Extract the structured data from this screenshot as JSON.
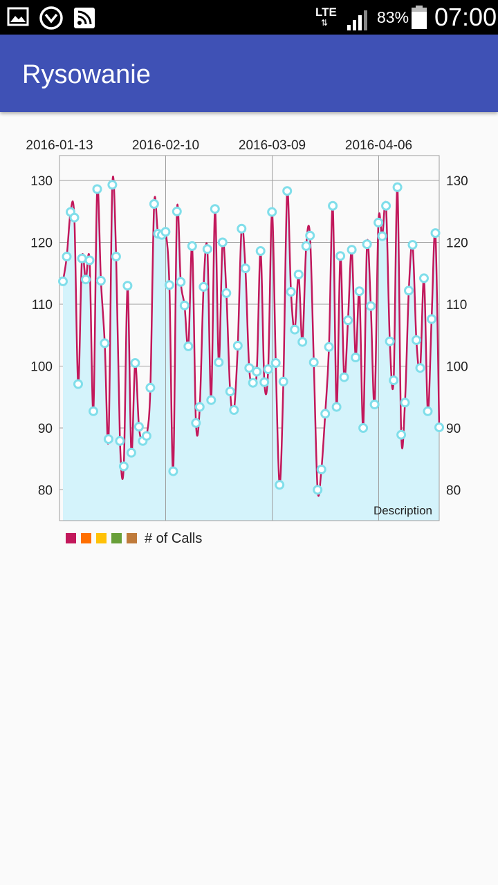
{
  "status_bar": {
    "network": "LTE",
    "network_arrows": "⇅",
    "battery": "83%",
    "time": "07:00",
    "icons": [
      "image-icon",
      "download-icon",
      "cast-icon",
      "signal-icon",
      "battery-icon"
    ]
  },
  "app_bar": {
    "title": "Rysowanie"
  },
  "chart_data": {
    "type": "line",
    "description": "Description",
    "x_axis_position": "top",
    "x_tick_labels": [
      "2016-01-13",
      "2016-02-10",
      "2016-03-09",
      "2016-04-06"
    ],
    "x_start": "2016-01-13",
    "y_left_ticks": [
      80,
      90,
      100,
      110,
      120,
      130
    ],
    "y_right_ticks": [
      80,
      90,
      100,
      110,
      120,
      130
    ],
    "ylim": [
      75,
      134
    ],
    "grid": true,
    "filled": true,
    "cubic": true,
    "line_color": "#c2185b",
    "fill_color": "#d4f3fb",
    "point_color": "#80deea",
    "series": [
      {
        "name": "# of Calls",
        "values": [
          113.7,
          117.7,
          124.9,
          124.0,
          97.1,
          117.4,
          114.0,
          117.1,
          92.7,
          128.6,
          113.8,
          103.7,
          88.2,
          129.3,
          117.7,
          87.9,
          83.8,
          113.0,
          86.0,
          100.5,
          90.2,
          87.9,
          88.7,
          96.5,
          126.2,
          121.4,
          121.2,
          121.7,
          113.1,
          83.0,
          125.0,
          113.6,
          109.8,
          103.2,
          119.4,
          90.8,
          93.4,
          112.8,
          118.9,
          94.5,
          125.4,
          100.6,
          120.0,
          111.8,
          95.9,
          92.9,
          103.3,
          122.2,
          115.8,
          99.7,
          97.3,
          99.1,
          118.6,
          97.4,
          99.5,
          124.9,
          100.5,
          80.8,
          97.5,
          128.3,
          112.0,
          105.9,
          114.8,
          103.9,
          119.4,
          121.1,
          100.6,
          80.0,
          83.3,
          92.3,
          103.1,
          125.9,
          93.4,
          117.8,
          98.2,
          107.4,
          118.8,
          101.4,
          112.1,
          90.0,
          119.7,
          109.7,
          93.8,
          123.2,
          121.0,
          125.9,
          104.0,
          97.7,
          128.9,
          88.9,
          94.1,
          112.2,
          119.6,
          104.2,
          99.7,
          114.2,
          92.7,
          107.6,
          121.5,
          90.1
        ]
      }
    ],
    "legend_colors": [
      "#c2185b",
      "#ff6f00",
      "#ffc107",
      "#689f38",
      "#bf7a3a"
    ]
  }
}
